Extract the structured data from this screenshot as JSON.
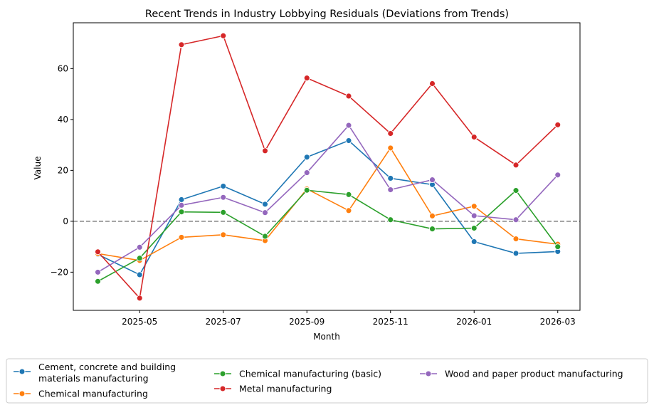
{
  "chart_data": {
    "type": "line",
    "title": "Recent Trends in Industry Lobbying Residuals (Deviations from Trends)",
    "xlabel": "Month",
    "ylabel": "Value",
    "x": [
      "2025-04",
      "2025-05",
      "2025-06",
      "2025-07",
      "2025-08",
      "2025-09",
      "2025-10",
      "2025-11",
      "2025-12",
      "2026-01",
      "2026-02",
      "2026-03"
    ],
    "x_tick_labels": [
      "2025-05",
      "2025-07",
      "2025-09",
      "2025-11",
      "2026-01",
      "2026-03"
    ],
    "y_ticks": [
      -20,
      0,
      20,
      40,
      60
    ],
    "ylim": [
      -35,
      78
    ],
    "reference_line": {
      "y": 0,
      "style": "dashed",
      "color": "#808080"
    },
    "grid": false,
    "legend_position": "bottom",
    "series": [
      {
        "name": "Cement, concrete and building materials manufacturing",
        "color": "#1f77b4",
        "values": [
          -13,
          -21,
          8.5,
          13.8,
          6.7,
          25.2,
          31.7,
          16.9,
          14.4,
          -8,
          -12.6,
          -11.9
        ]
      },
      {
        "name": "Chemical manufacturing",
        "color": "#ff7f0e",
        "values": [
          -12.7,
          -15.4,
          -6.3,
          -5.3,
          -7.6,
          12.7,
          4.2,
          28.8,
          2.1,
          5.9,
          -6.9,
          -9
        ]
      },
      {
        "name": "Chemical manufacturing (basic)",
        "color": "#2ca02c",
        "values": [
          -23.6,
          -14.5,
          3.7,
          3.5,
          -5.9,
          12.2,
          10.5,
          0.6,
          -3,
          -2.7,
          12.1,
          -10
        ]
      },
      {
        "name": "Metal manufacturing",
        "color": "#d62728",
        "values": [
          -12,
          -30.2,
          69.4,
          72.9,
          27.7,
          56.3,
          49.2,
          34.5,
          54.1,
          33.1,
          22.1,
          37.9
        ]
      },
      {
        "name": "Wood and paper product manufacturing",
        "color": "#9467bd",
        "values": [
          -20,
          -10.2,
          6.3,
          9.4,
          3.4,
          19.1,
          37.7,
          12.4,
          16.3,
          2.2,
          0.6,
          18.2
        ]
      }
    ]
  }
}
